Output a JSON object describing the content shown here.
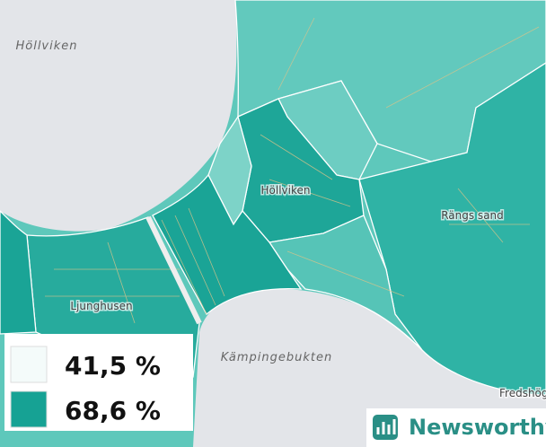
{
  "labels": [
    "Höllviken",
    "Höllviken",
    "Rängs sand",
    "Ljunghusen",
    "Kämpingebukten",
    "Fredshög"
  ],
  "legend": [
    {
      "label": "41,5 %",
      "color": "#f4fbfa"
    },
    {
      "label": "68,6 %",
      "color": "#16a294"
    }
  ],
  "logo": "Newsworthy"
}
